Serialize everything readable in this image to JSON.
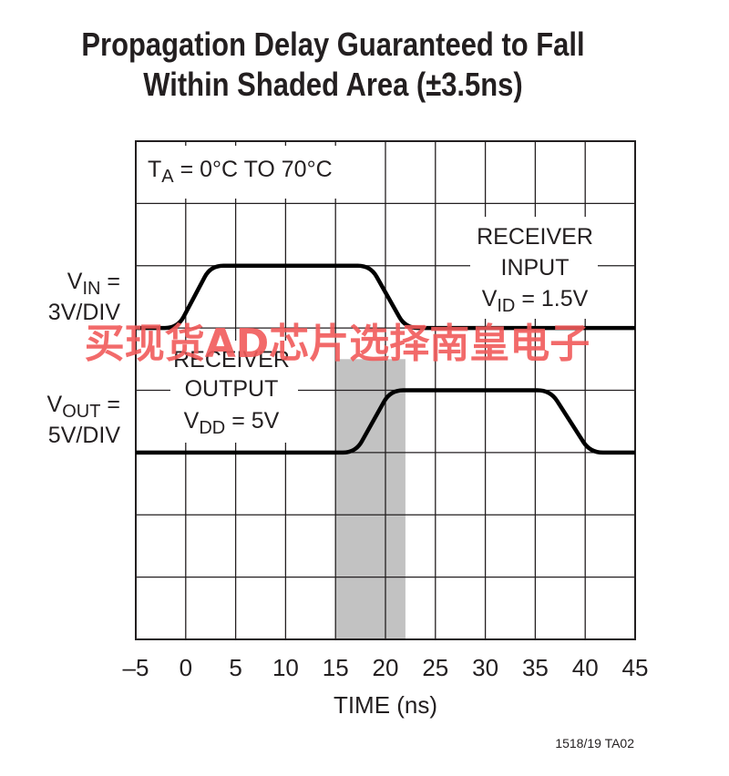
{
  "title_line1": "Propagation Delay Guaranteed to Fall",
  "title_line2": "Within Shaded Area (±3.5ns)",
  "footer_code": "1518/19 TA02",
  "watermark": "买现货AD芯片选择南皇电子",
  "chart_data": {
    "type": "line",
    "xlabel": "TIME (ns)",
    "x_ticks": [
      "–5",
      "0",
      "5",
      "10",
      "15",
      "20",
      "25",
      "30",
      "35",
      "40",
      "45"
    ],
    "xlim": [
      -5,
      45
    ],
    "grid": true,
    "condition_label": {
      "main": "T",
      "sub": "A",
      "rest": " = 0°C TO 70°C"
    },
    "shaded_region": {
      "x": [
        15,
        22
      ]
    },
    "y_labels": {
      "vin": {
        "main": "V",
        "sub": "IN",
        "rest": " =",
        "line2": "3V/DIV"
      },
      "vout": {
        "main": "V",
        "sub": "OUT",
        "rest": " =",
        "line2": "5V/DIV"
      }
    },
    "series": [
      {
        "name": "RECEIVER INPUT",
        "annotation": {
          "line1": "RECEIVER",
          "line2": "INPUT",
          "main": "V",
          "sub": "ID",
          "rest": " = 1.5V"
        },
        "x": [
          -5,
          -0.8,
          2.5,
          18.5,
          22,
          45
        ],
        "y": [
          0,
          0,
          1,
          1,
          0,
          0
        ]
      },
      {
        "name": "RECEIVER OUTPUT",
        "annotation": {
          "line1": "RECEIVER",
          "line2": "OUTPUT",
          "main": "V",
          "sub": "DD",
          "rest": " = 5V"
        },
        "x": [
          -5,
          17,
          20.5,
          36.5,
          40.5,
          45
        ],
        "y": [
          0,
          0,
          1,
          1,
          0,
          0
        ]
      }
    ]
  }
}
